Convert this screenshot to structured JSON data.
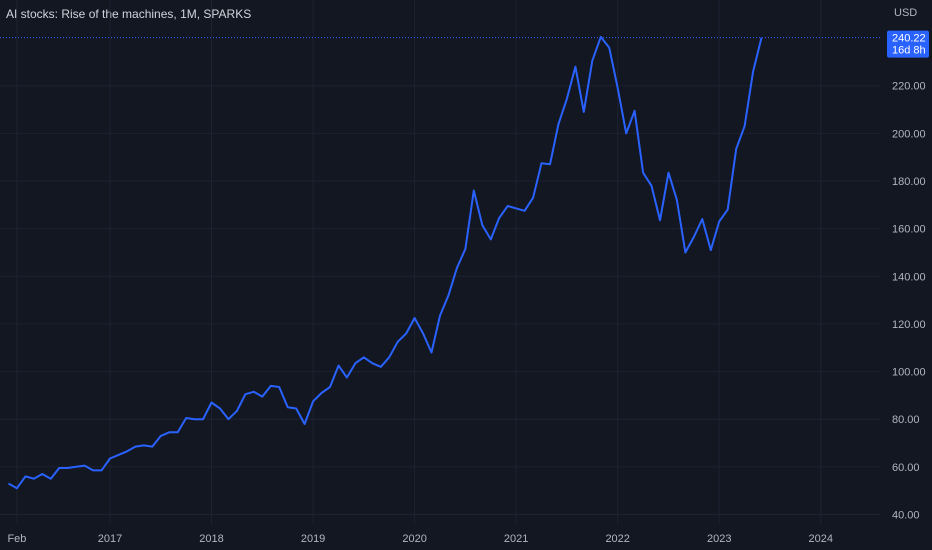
{
  "header": {
    "title": "AI stocks: Rise of the machines, 1M, SPARKS",
    "currency": "USD"
  },
  "price_label": {
    "price": "240.22",
    "countdown": "16d 8h"
  },
  "colors": {
    "background": "#131722",
    "grid": "#1e2231",
    "line": "#2962ff",
    "axis_text": "#b2b5be",
    "label_bg": "#2962ff"
  },
  "chart_data": {
    "type": "line",
    "title": "AI stocks: Rise of the machines, 1M, SPARKS",
    "xlabel": "",
    "ylabel": "",
    "ylim": [
      36,
      256
    ],
    "xlim": [
      "2015-12",
      "2024-08"
    ],
    "yticks": [
      40,
      60,
      80,
      100,
      120,
      140,
      160,
      180,
      200,
      220
    ],
    "ytick_labels": [
      "40.00",
      "60.00",
      "80.00",
      "100.00",
      "120.00",
      "140.00",
      "160.00",
      "180.00",
      "200.00",
      "220.00"
    ],
    "xticks": [
      {
        "date": "2016-02",
        "label": "Feb"
      },
      {
        "date": "2017-01",
        "label": "2017"
      },
      {
        "date": "2018-01",
        "label": "2018"
      },
      {
        "date": "2019-01",
        "label": "2019"
      },
      {
        "date": "2020-01",
        "label": "2020"
      },
      {
        "date": "2021-01",
        "label": "2021"
      },
      {
        "date": "2022-01",
        "label": "2022"
      },
      {
        "date": "2023-01",
        "label": "2023"
      },
      {
        "date": "2024-01",
        "label": "2024"
      }
    ],
    "last_price": 240.22,
    "grid": true,
    "x": [
      "2016-01",
      "2016-02",
      "2016-03",
      "2016-04",
      "2016-05",
      "2016-06",
      "2016-07",
      "2016-08",
      "2016-09",
      "2016-10",
      "2016-11",
      "2016-12",
      "2017-01",
      "2017-02",
      "2017-03",
      "2017-04",
      "2017-05",
      "2017-06",
      "2017-07",
      "2017-08",
      "2017-09",
      "2017-10",
      "2017-11",
      "2017-12",
      "2018-01",
      "2018-02",
      "2018-03",
      "2018-04",
      "2018-05",
      "2018-06",
      "2018-07",
      "2018-08",
      "2018-09",
      "2018-10",
      "2018-11",
      "2018-12",
      "2019-01",
      "2019-02",
      "2019-03",
      "2019-04",
      "2019-05",
      "2019-06",
      "2019-07",
      "2019-08",
      "2019-09",
      "2019-10",
      "2019-11",
      "2019-12",
      "2020-01",
      "2020-02",
      "2020-03",
      "2020-04",
      "2020-05",
      "2020-06",
      "2020-07",
      "2020-08",
      "2020-09",
      "2020-10",
      "2020-11",
      "2020-12",
      "2021-01",
      "2021-02",
      "2021-03",
      "2021-04",
      "2021-05",
      "2021-06",
      "2021-07",
      "2021-08",
      "2021-09",
      "2021-10",
      "2021-11",
      "2021-12",
      "2022-01",
      "2022-02",
      "2022-03",
      "2022-04",
      "2022-05",
      "2022-06",
      "2022-07",
      "2022-08",
      "2022-09",
      "2022-10",
      "2022-11",
      "2022-12",
      "2023-01",
      "2023-02",
      "2023-03",
      "2023-04",
      "2023-05",
      "2023-06"
    ],
    "series": [
      {
        "values": [
          53,
          51,
          56,
          55,
          57,
          55,
          59.5,
          59.5,
          60,
          60.5,
          58.5,
          58.5,
          63.5,
          65,
          66.5,
          68.5,
          69,
          68.5,
          73,
          74.5,
          74.5,
          80.5,
          80,
          80,
          87,
          84.5,
          80,
          83.5,
          90.5,
          91.5,
          89.5,
          94,
          93.5,
          85,
          84.5,
          78,
          87.5,
          91,
          93.5,
          102.5,
          97.5,
          103.5,
          106,
          103.5,
          102,
          106,
          112.5,
          116,
          122.5,
          116,
          108,
          123.5,
          132,
          143.5,
          151.5,
          176,
          161.5,
          155.5,
          164.5,
          169.5,
          168.5,
          167.5,
          173,
          187.5,
          187,
          204,
          214.5,
          228,
          209,
          230.5,
          240.5,
          236,
          219,
          200,
          209.5,
          183.5,
          178,
          163.5,
          183.5,
          172,
          150,
          156.5,
          164,
          151,
          163,
          168,
          193.5,
          203,
          226,
          240.22
        ]
      }
    ]
  }
}
